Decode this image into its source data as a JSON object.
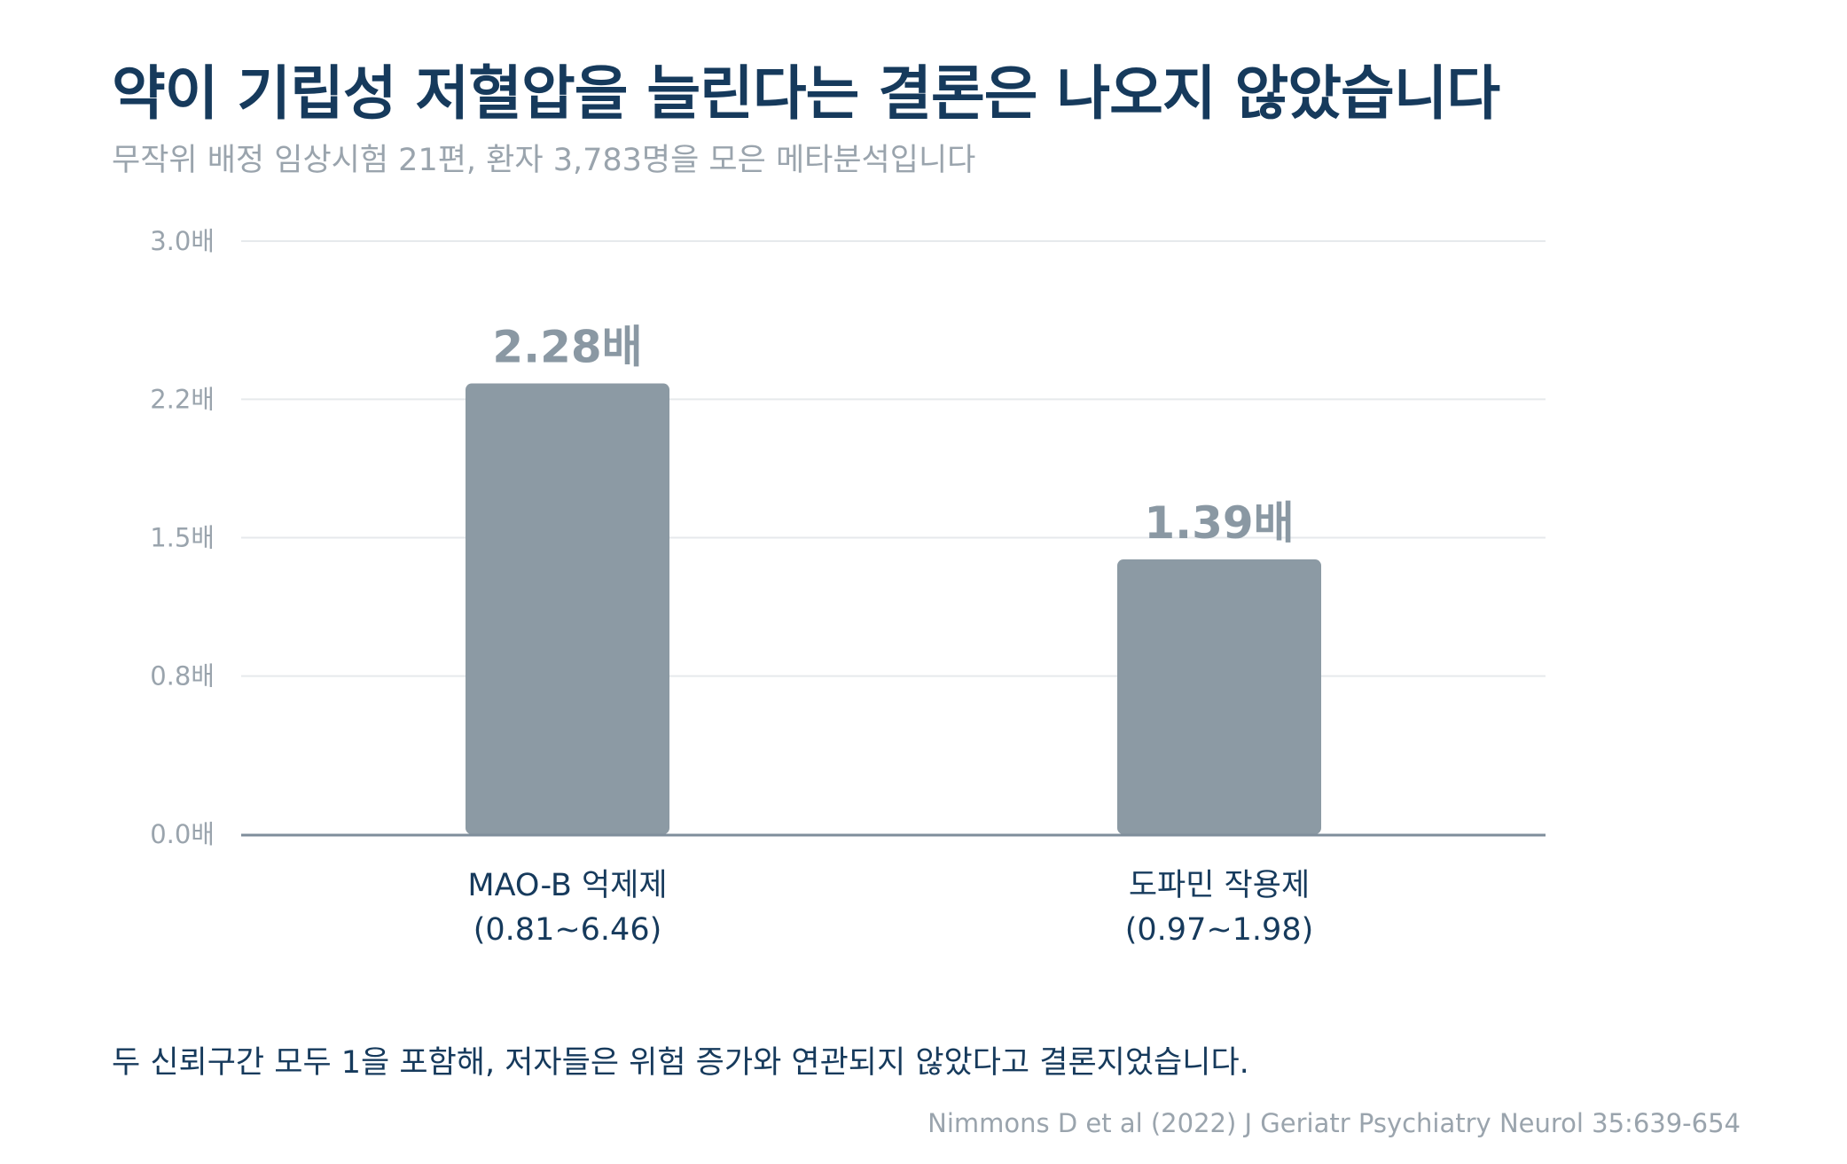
{
  "title": "약이 기립성 저혈압을 늘린다는 결론은 나오지 않았습니다",
  "subtitle": "무작위 배정 임상시험 21편, 환자 3,783명을 모은 메타분석입니다",
  "note": "두 신뢰구간 모두 1을 포함해, 저자들은 위험 증가와 연관되지 않았다고 결론지었습니다.",
  "source": "Nimmons D et al (2022) J Geriatr Psychiatry Neurol 35:639-654",
  "colors": {
    "bar": "#8c9aa4",
    "title": "#163a5c",
    "muted": "#9aa4ad",
    "grid": "#e6e9ec",
    "axis": "#7f8e9b"
  },
  "chart_data": {
    "type": "bar",
    "categories": [
      "MAO-B 억제제",
      "도파민 작용제"
    ],
    "ci_labels": [
      "(0.81~6.46)",
      "(0.97~1.98)"
    ],
    "values": [
      2.28,
      1.39
    ],
    "value_labels": [
      "2.28배",
      "1.39배"
    ],
    "y_ticks": [
      0,
      0.8,
      1.5,
      2.2,
      3.0
    ],
    "y_tick_labels": [
      "0.0배",
      "0.8배",
      "1.5배",
      "2.2배",
      "3.0배"
    ],
    "ylim": [
      0,
      3.0
    ],
    "grid": true
  }
}
